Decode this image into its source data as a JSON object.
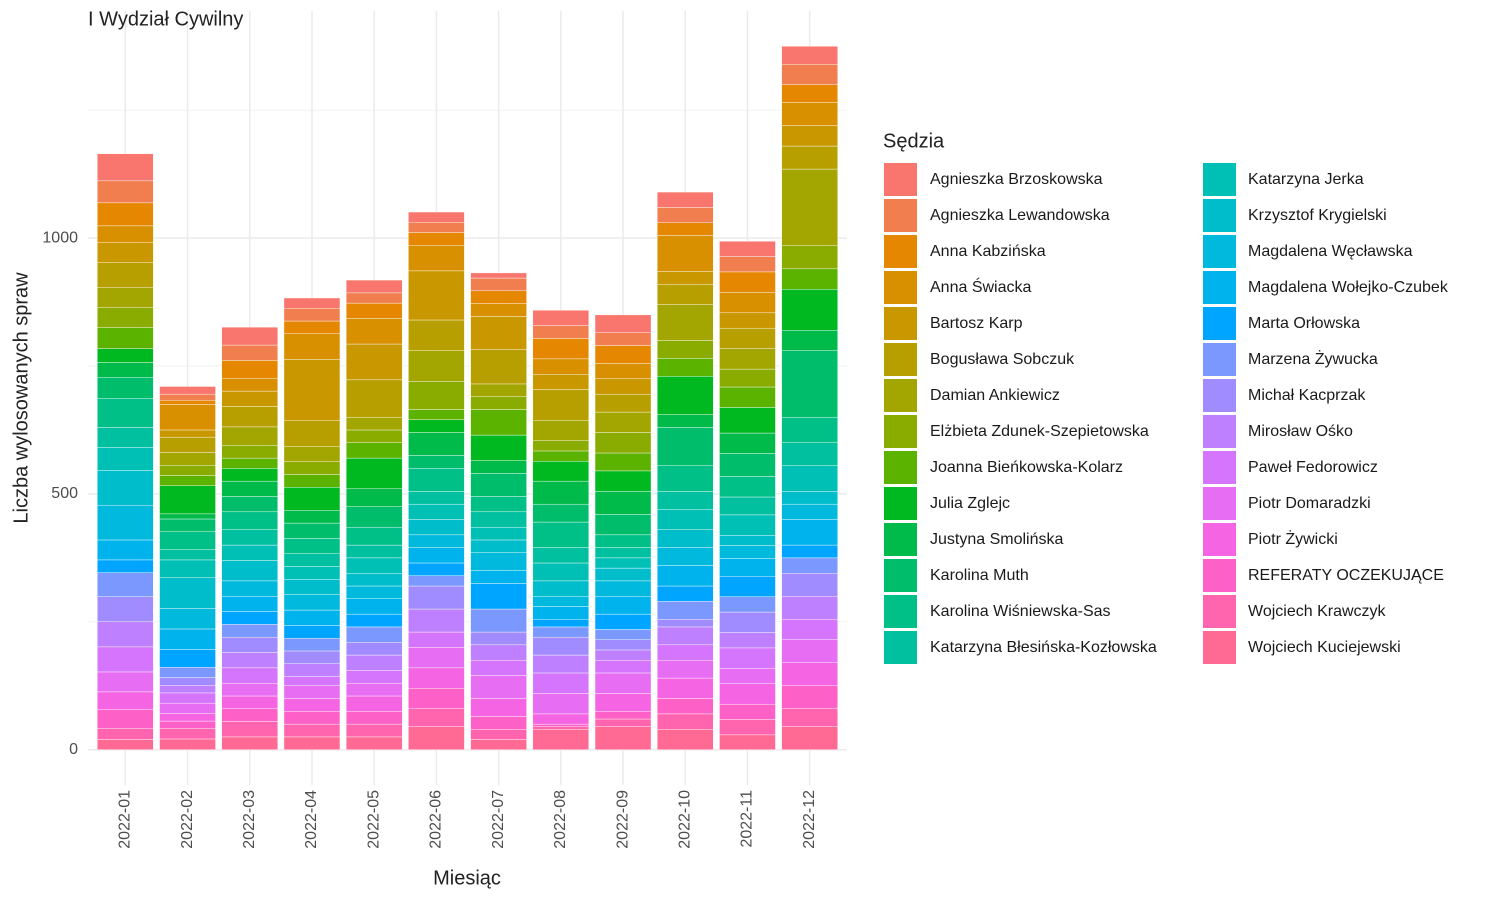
{
  "chart_data": {
    "type": "stacked_bar",
    "title": "I Wydział Cywilny",
    "x_label": "Miesiąc",
    "y_label": "Liczba wylosowanych spraw",
    "legend_title": "Sędzia",
    "categories": [
      "2022-01",
      "2022-02",
      "2022-03",
      "2022-04",
      "2022-05",
      "2022-06",
      "2022-07",
      "2022-08",
      "2022-09",
      "2022-10",
      "2022-11",
      "2022-12"
    ],
    "ylim": [
      -69,
      1444
    ],
    "yticks": [
      0,
      500,
      1000
    ],
    "y_minor_grid": [
      250,
      750,
      1250
    ],
    "grid": true,
    "legend_position": "right",
    "series": [
      {
        "name": "Agnieszka Brzoskowska",
        "color": "#F8766D",
        "values": [
          53,
          15,
          35,
          20,
          25,
          20,
          10,
          30,
          35,
          30,
          30,
          35
        ]
      },
      {
        "name": "Agnieszka Lewandowska",
        "color": "#F07E4E",
        "values": [
          43,
          12,
          30,
          25,
          20,
          20,
          25,
          25,
          25,
          30,
          30,
          40
        ]
      },
      {
        "name": "Anna Kabzińska",
        "color": "#E58700",
        "values": [
          45,
          8,
          35,
          25,
          30,
          25,
          25,
          40,
          35,
          25,
          40,
          35
        ]
      },
      {
        "name": "Anna Świacka",
        "color": "#D89000",
        "values": [
          33,
          50,
          25,
          50,
          50,
          50,
          25,
          30,
          30,
          70,
          40,
          45
        ]
      },
      {
        "name": "Bartosz Karp",
        "color": "#C99800",
        "values": [
          39,
          14,
          30,
          120,
          70,
          96,
          65,
          30,
          30,
          25,
          30,
          40
        ]
      },
      {
        "name": "Bogusława Sobczuk",
        "color": "#B89F00",
        "values": [
          49,
          30,
          40,
          50,
          73,
          60,
          67,
          60,
          35,
          40,
          40,
          45
        ]
      },
      {
        "name": "Damian Ankiewicz",
        "color": "#A3A500",
        "values": [
          39,
          25,
          36,
          30,
          25,
          60,
          25,
          40,
          40,
          70,
          40,
          150
        ]
      },
      {
        "name": "Elżbieta Zdunek-Szepietowska",
        "color": "#8AAB00",
        "values": [
          39,
          20,
          25,
          25,
          25,
          55,
          25,
          20,
          40,
          35,
          35,
          45
        ]
      },
      {
        "name": "Joanna Bieńkowska-Kolarz",
        "color": "#5BB300",
        "values": [
          41,
          20,
          20,
          25,
          30,
          20,
          50,
          20,
          35,
          35,
          40,
          40
        ]
      },
      {
        "name": "Julia Zglejc",
        "color": "#00B81F",
        "values": [
          27,
          55,
          25,
          45,
          60,
          25,
          50,
          39,
          40,
          75,
          50,
          80
        ]
      },
      {
        "name": "Justyna Smolińska",
        "color": "#00BA4A",
        "values": [
          29,
          10,
          30,
          25,
          35,
          45,
          25,
          45,
          45,
          25,
          40,
          40
        ]
      },
      {
        "name": "Karolina Muth",
        "color": "#00BD6B",
        "values": [
          41,
          25,
          30,
          30,
          40,
          25,
          45,
          35,
          40,
          75,
          45,
          130
        ]
      },
      {
        "name": "Karolina Wiśniewska-Sas",
        "color": "#00BF87",
        "values": [
          57,
          35,
          35,
          30,
          35,
          45,
          30,
          50,
          25,
          50,
          40,
          50
        ]
      },
      {
        "name": "Katarzyna Błesińska-Kozłowska",
        "color": "#00C0A0",
        "values": [
          39,
          20,
          30,
          25,
          25,
          25,
          30,
          30,
          20,
          35,
          35,
          45
        ]
      },
      {
        "name": "Katarzyna Jerka",
        "color": "#00C0B6",
        "values": [
          45,
          35,
          30,
          25,
          30,
          30,
          25,
          35,
          20,
          40,
          40,
          50
        ]
      },
      {
        "name": "Krzysztof Krygielski",
        "color": "#00BDCB",
        "values": [
          68,
          60,
          40,
          30,
          25,
          30,
          25,
          30,
          25,
          35,
          20,
          25
        ]
      },
      {
        "name": "Magdalena Węcławska",
        "color": "#00B9DD",
        "values": [
          68,
          40,
          30,
          30,
          25,
          25,
          35,
          20,
          30,
          35,
          25,
          30
        ]
      },
      {
        "name": "Magdalena Wołejko-Czubek",
        "color": "#00B3EC",
        "values": [
          39,
          40,
          30,
          30,
          30,
          30,
          25,
          25,
          35,
          40,
          35,
          50
        ]
      },
      {
        "name": "Marta Orłowska",
        "color": "#00A5FF",
        "values": [
          25,
          35,
          25,
          25,
          25,
          25,
          50,
          15,
          30,
          30,
          40,
          25
        ]
      },
      {
        "name": "Marzena Żywucka",
        "color": "#7B98FF",
        "values": [
          47,
          20,
          25,
          25,
          30,
          20,
          45,
          20,
          20,
          35,
          30,
          30
        ]
      },
      {
        "name": "Michał Kacprzak",
        "color": "#A08CFF",
        "values": [
          49,
          15,
          30,
          25,
          25,
          45,
          25,
          35,
          20,
          15,
          40,
          45
        ]
      },
      {
        "name": "Mirosław Ośko",
        "color": "#BE80FF",
        "values": [
          49,
          15,
          30,
          25,
          30,
          45,
          30,
          35,
          20,
          35,
          30,
          45
        ]
      },
      {
        "name": "Paweł Fedorowicz",
        "color": "#D575FE",
        "values": [
          49,
          20,
          30,
          18,
          25,
          30,
          30,
          40,
          25,
          30,
          40,
          40
        ]
      },
      {
        "name": "Piotr Domaradzki",
        "color": "#E76DF2",
        "values": [
          39,
          20,
          25,
          25,
          25,
          40,
          45,
          40,
          40,
          35,
          30,
          45
        ]
      },
      {
        "name": "Piotr Żywicki",
        "color": "#F564E3",
        "values": [
          35,
          15,
          25,
          25,
          30,
          40,
          35,
          20,
          35,
          40,
          40,
          45
        ]
      },
      {
        "name": "REFERATY OCZEKUJĄCE",
        "color": "#FD61C8",
        "values": [
          37,
          15,
          25,
          25,
          25,
          40,
          25,
          5,
          15,
          30,
          30,
          45
        ]
      },
      {
        "name": "Wojciech Krawczyk",
        "color": "#FF64AE",
        "values": [
          21,
          20,
          30,
          25,
          25,
          35,
          20,
          5,
          15,
          30,
          30,
          35
        ]
      },
      {
        "name": "Wojciech Kuciejewski",
        "color": "#FF6A94",
        "values": [
          20,
          21,
          25,
          25,
          25,
          45,
          20,
          40,
          45,
          40,
          29,
          45
        ]
      }
    ]
  }
}
